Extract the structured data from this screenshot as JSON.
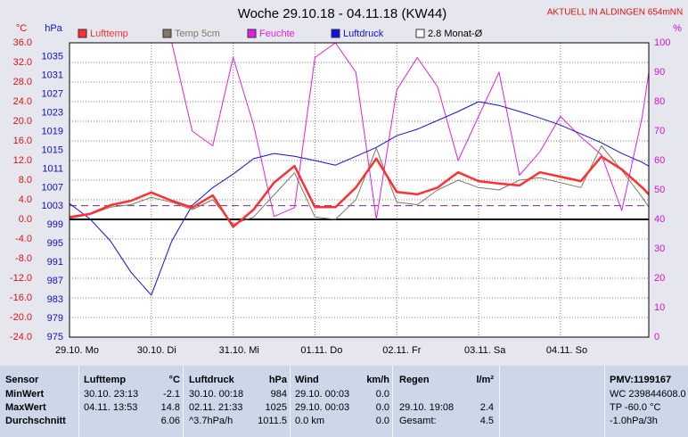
{
  "chart_data": {
    "type": "line",
    "title": "Woche 29.10.18 - 04.11.18 (KW44)",
    "annotation": "AKTUELL IN ALDINGEN 654mNN",
    "y_label": "°C",
    "y2_label": "hPa",
    "y3_label": "%",
    "grid": true,
    "x": [
      0,
      0.25,
      0.5,
      0.75,
      1,
      1.25,
      1.5,
      1.75,
      2,
      2.25,
      2.5,
      2.75,
      3,
      3.25,
      3.5,
      3.75,
      4,
      4.25,
      4.5,
      4.75,
      5,
      5.25,
      5.5,
      5.75,
      6,
      6.25,
      6.5,
      6.75,
      7,
      7.08
    ],
    "xlim": [
      0,
      7.08
    ],
    "xticks": [
      {
        "value": 0,
        "label": "29.10. Mo"
      },
      {
        "value": 1,
        "label": "30.10. Di"
      },
      {
        "value": 2,
        "label": "31.10. Mi"
      },
      {
        "value": 3,
        "label": "01.11. Do"
      },
      {
        "value": 4,
        "label": "02.11. Fr"
      },
      {
        "value": 5,
        "label": "03.11. Sa"
      },
      {
        "value": 6,
        "label": "04.11. So"
      }
    ],
    "ylim": [
      -24,
      36
    ],
    "yticks": [
      {
        "value": 36,
        "label": "36.0"
      },
      {
        "value": 32,
        "label": "32.0"
      },
      {
        "value": 28,
        "label": "28.0"
      },
      {
        "value": 24,
        "label": "24.0"
      },
      {
        "value": 20,
        "label": "20.0"
      },
      {
        "value": 16,
        "label": "16.0"
      },
      {
        "value": 12,
        "label": "12.0"
      },
      {
        "value": 8,
        "label": "8.0"
      },
      {
        "value": 4,
        "label": "4.0"
      },
      {
        "value": 0,
        "label": "0.0"
      },
      {
        "value": -4,
        "label": "-4.0"
      },
      {
        "value": -8,
        "label": "-8.0"
      },
      {
        "value": -12,
        "label": "-12.0"
      },
      {
        "value": -16,
        "label": "-16.0"
      },
      {
        "value": -20,
        "label": "-20.0"
      },
      {
        "value": -24,
        "label": "-24.0"
      }
    ],
    "y2lim": [
      975,
      1038
    ],
    "y2ticks": [
      1035,
      1031,
      1027,
      1023,
      1019,
      1015,
      1011,
      1007,
      1003,
      999,
      995,
      991,
      987,
      983,
      979,
      975
    ],
    "y3lim": [
      0,
      100
    ],
    "y3ticks": [
      100,
      90,
      80,
      70,
      60,
      50,
      40,
      30,
      20,
      10,
      0
    ],
    "series": [
      {
        "name": "Lufttemp",
        "color": "#ff3030",
        "axis": "y",
        "values": [
          0.5,
          1.1,
          2.9,
          3.8,
          5.5,
          3.8,
          2.4,
          4.9,
          -1.5,
          2.0,
          7.5,
          10.9,
          2.5,
          2.5,
          6.5,
          12.4,
          5.6,
          5.1,
          6.5,
          9.6,
          7.8,
          7.3,
          6.9,
          9.6,
          8.7,
          7.8,
          12.8,
          10.2,
          6.5,
          5.1
        ]
      },
      {
        "name": "Temp 5cm",
        "color": "#807860",
        "axis": "y",
        "values": [
          0.2,
          1.0,
          2.5,
          3.0,
          4.5,
          3.5,
          2.0,
          4.0,
          -1.0,
          0.5,
          5.0,
          9.5,
          0.5,
          0.0,
          4.0,
          14.5,
          3.5,
          3.0,
          6.0,
          8.0,
          6.5,
          6.0,
          8.0,
          8.5,
          7.5,
          6.5,
          15.0,
          10.0,
          4.5,
          2.5
        ]
      },
      {
        "name": "Feuchte",
        "color": "#e020e0",
        "axis": "y3",
        "values": [
          100,
          100,
          100,
          100,
          100,
          100,
          70,
          65,
          95,
          72,
          41,
          44,
          95,
          100,
          90,
          40,
          84,
          95,
          85,
          60,
          75,
          90,
          55,
          63,
          75,
          68,
          62,
          43,
          75,
          90
        ]
      },
      {
        "name": "Luftdruck",
        "color": "#1010e0",
        "axis": "y2",
        "values": [
          1003.6,
          1000.3,
          995.6,
          988.9,
          984,
          995.6,
          1003.2,
          1007,
          1009.9,
          1013.2,
          1014.3,
          1013.7,
          1012.8,
          1011.8,
          1013.7,
          1015.6,
          1018.1,
          1019.5,
          1021.4,
          1023.3,
          1025.4,
          1024.6,
          1023.3,
          1021.9,
          1020.4,
          1018.5,
          1016.6,
          1014.3,
          1012.4,
          1011.6
        ]
      }
    ],
    "reference_line": {
      "name": "2.8 Monat-Ø",
      "value": 2.8,
      "color": "#8020a0"
    }
  },
  "table": {
    "header": [
      "Sensor",
      "Lufttemp",
      "°C",
      "Luftdruck",
      "hPa",
      "Wind",
      "km/h",
      "Regen",
      "l/m²",
      null,
      "PMV:1199167"
    ],
    "rows": [
      [
        "MinWert",
        "30.10.  23:13",
        "-2.1",
        "30.10.  00:18",
        "984",
        "29.10.  00:03",
        "0.0",
        null,
        null,
        null,
        "WC 239844608.0"
      ],
      [
        "MaxWert",
        "04.11.  13:53",
        "14.8",
        "02.11.  21:33",
        "1025",
        "29.10.  00:03",
        "0.0",
        "29.10.  19:08",
        "2.4",
        null,
        "TP -60.0 °C"
      ],
      [
        "Durchschnitt",
        null,
        "6.06",
        "^3.7hPa/h",
        "1011.5",
        "0.0 km",
        "0.0",
        "Gesamt:",
        "4.5",
        null,
        "-1.0hPa/3h"
      ]
    ]
  }
}
